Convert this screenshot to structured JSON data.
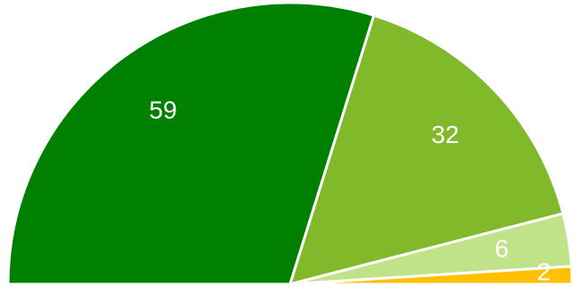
{
  "chart_data": {
    "type": "pie",
    "variant": "semicircle",
    "slices": [
      {
        "value": 59,
        "label": "59",
        "color": "#008000"
      },
      {
        "value": 32,
        "label": "32",
        "color": "#80B92A"
      },
      {
        "value": 6,
        "label": "6",
        "color": "#C0E38A"
      },
      {
        "value": 2,
        "label": "2",
        "color": "#FFC000"
      }
    ],
    "total": 99,
    "legend": "none",
    "grid": false
  }
}
